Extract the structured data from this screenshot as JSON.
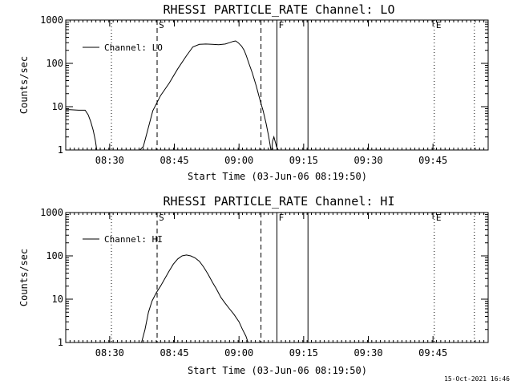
{
  "chart_data": [
    {
      "type": "line",
      "title": "RHESSI PARTICLE_RATE Channel: LO",
      "xlabel": "Start Time (03-Jun-06 08:19:50)",
      "ylabel": "Counts/sec",
      "yscale": "log",
      "ylim": [
        1,
        1000
      ],
      "xlim_minutes_after_start": [
        0,
        98
      ],
      "x_tick_labels": [
        "08:30",
        "08:45",
        "09:00",
        "09:15",
        "09:30",
        "09:45"
      ],
      "x_tick_minutes": [
        10.2,
        25.2,
        40.2,
        55.2,
        70.2,
        85.2
      ],
      "y_tick_labels": [
        "1",
        "10",
        "100",
        "1000"
      ],
      "y_tick_values": [
        1,
        10,
        100,
        1000
      ],
      "legend": [
        "Channel: LO"
      ],
      "series": [
        {
          "name": "Channel: LO",
          "x": [
            0,
            1,
            3,
            4.5,
            5.2,
            5.8,
            6.4,
            6.9,
            7.2,
            17.2,
            18,
            18.6,
            19.4,
            20.2,
            22,
            24,
            26,
            28,
            29.5,
            31,
            32.5,
            34,
            35.5,
            37,
            38,
            38.8,
            39.4,
            40,
            40.8,
            41.4,
            41.9,
            42.5,
            43.3,
            44.2,
            44.8,
            45.4,
            45.8,
            46.1,
            46.5,
            47.1,
            47.6,
            47.8,
            48,
            48.3,
            48.9,
            49.3
          ],
          "y": [
            8.5,
            8.5,
            8.3,
            8.3,
            6.5,
            4.5,
            2.8,
            1.6,
            1,
            1,
            1.2,
            2,
            4,
            8,
            18,
            35,
            75,
            150,
            240,
            275,
            280,
            275,
            270,
            280,
            300,
            320,
            330,
            300,
            250,
            200,
            150,
            100,
            60,
            30,
            18,
            11,
            8,
            6,
            4,
            2,
            1,
            1,
            1.6,
            2,
            1.2,
            1
          ]
        }
      ],
      "annotations": {
        "dotted_lines_minutes": [
          10.6,
          94.8
        ],
        "dashed_lines_minutes": [
          21.2,
          45.3
        ],
        "solid_lines_minutes": [
          49.0,
          56.2
        ],
        "dotted_line_minutes_E": 85.5,
        "markers": [
          {
            "label": "S",
            "minute": 21.6
          },
          {
            "label": "F",
            "minute": 49.4
          },
          {
            "label": "E",
            "minute": 85.9
          }
        ]
      }
    },
    {
      "type": "line",
      "title": "RHESSI PARTICLE_RATE Channel: HI",
      "xlabel": "Start Time (03-Jun-06 08:19:50)",
      "ylabel": "Counts/sec",
      "yscale": "log",
      "ylim": [
        1,
        1000
      ],
      "xlim_minutes_after_start": [
        0,
        98
      ],
      "x_tick_labels": [
        "08:30",
        "08:45",
        "09:00",
        "09:15",
        "09:30",
        "09:45"
      ],
      "x_tick_minutes": [
        10.2,
        25.2,
        40.2,
        55.2,
        70.2,
        85.2
      ],
      "y_tick_labels": [
        "1",
        "10",
        "100",
        "1000"
      ],
      "y_tick_values": [
        1,
        10,
        100,
        1000
      ],
      "legend": [
        "Channel: HI"
      ],
      "series": [
        {
          "name": "Channel: HI",
          "x": [
            17.6,
            18.4,
            19.2,
            20,
            21,
            22,
            23,
            24,
            25,
            26,
            27,
            28,
            29,
            30,
            31,
            32,
            33,
            34,
            35,
            36,
            37,
            38,
            39,
            40.2,
            41,
            41.8,
            42.3
          ],
          "y": [
            1,
            2,
            5,
            9,
            14,
            20,
            30,
            45,
            65,
            85,
            100,
            105,
            100,
            90,
            75,
            55,
            38,
            25,
            17,
            11,
            8,
            6,
            4.5,
            3,
            2,
            1.4,
            1
          ]
        }
      ],
      "annotations": {
        "dotted_lines_minutes": [
          10.6,
          94.8
        ],
        "dashed_lines_minutes": [
          21.2,
          45.3
        ],
        "solid_lines_minutes": [
          49.0,
          56.2
        ],
        "dotted_line_minutes_E": 85.5,
        "markers": [
          {
            "label": "S",
            "minute": 21.6
          },
          {
            "label": "F",
            "minute": 49.4
          },
          {
            "label": "E",
            "minute": 85.9
          }
        ]
      }
    }
  ],
  "footer": {
    "timestamp": "15-Oct-2021 16:46"
  }
}
